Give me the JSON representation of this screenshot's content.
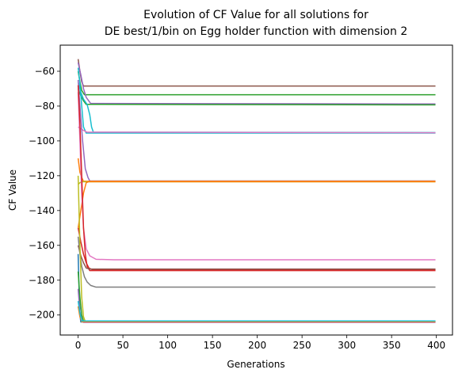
{
  "chart_data": {
    "type": "line",
    "title_lines": [
      "Evolution of CF Value for all solutions for",
      "DE best/1/bin on Egg holder function with dimension 2"
    ],
    "xlabel": "Generations",
    "ylabel": "CF Value",
    "xlim": [
      -20,
      418
    ],
    "ylim": [
      -211.5,
      -45
    ],
    "x_ticks": [
      0,
      50,
      100,
      150,
      200,
      250,
      300,
      350,
      400
    ],
    "y_ticks": [
      -60,
      -80,
      -100,
      -120,
      -140,
      -160,
      -180,
      -200
    ],
    "x_tick_labels": [
      "0",
      "50",
      "100",
      "150",
      "200",
      "250",
      "300",
      "350",
      "400"
    ],
    "y_tick_labels": [
      "−60",
      "−80",
      "−100",
      "−120",
      "−140",
      "−160",
      "−180",
      "−200"
    ],
    "grid": false,
    "legend": "none",
    "x_max": 399,
    "series": [
      {
        "color": "#8c564b",
        "points": [
          [
            0,
            -53
          ],
          [
            2,
            -60
          ],
          [
            4,
            -66
          ],
          [
            6,
            -68.5
          ],
          [
            399,
            -68.5
          ]
        ]
      },
      {
        "color": "#2ca02c",
        "points": [
          [
            0,
            -60
          ],
          [
            2,
            -66
          ],
          [
            4,
            -71
          ],
          [
            7,
            -73.5
          ],
          [
            399,
            -73.5
          ]
        ]
      },
      {
        "color": "#9467bd",
        "points": [
          [
            0,
            -55
          ],
          [
            3,
            -62
          ],
          [
            6,
            -70
          ],
          [
            9,
            -75
          ],
          [
            14,
            -78.5
          ],
          [
            399,
            -78.8
          ]
        ]
      },
      {
        "color": "#2ca02c",
        "points": [
          [
            0,
            -70
          ],
          [
            3,
            -74
          ],
          [
            6,
            -77
          ],
          [
            9,
            -79
          ],
          [
            399,
            -79.3
          ]
        ]
      },
      {
        "color": "#17becf",
        "points": [
          [
            0,
            -66
          ],
          [
            3,
            -72
          ],
          [
            6,
            -76
          ],
          [
            10,
            -79
          ],
          [
            13,
            -85
          ],
          [
            15,
            -92
          ],
          [
            17,
            -95
          ],
          [
            399,
            -95.2
          ]
        ]
      },
      {
        "color": "#17becf",
        "points": [
          [
            0,
            -58
          ],
          [
            2,
            -67
          ],
          [
            4,
            -80
          ],
          [
            6,
            -92
          ],
          [
            9,
            -95.5
          ],
          [
            399,
            -95.5
          ]
        ]
      },
      {
        "color": "#e377c2",
        "points": [
          [
            0,
            -92
          ],
          [
            3,
            -93
          ],
          [
            6,
            -94
          ],
          [
            10,
            -95
          ],
          [
            399,
            -95.3
          ]
        ]
      },
      {
        "color": "#9467bd",
        "points": [
          [
            0,
            -65
          ],
          [
            2,
            -80
          ],
          [
            5,
            -100
          ],
          [
            8,
            -116
          ],
          [
            11,
            -121
          ],
          [
            13,
            -123
          ],
          [
            399,
            -123
          ]
        ]
      },
      {
        "color": "#ff7f0e",
        "points": [
          [
            0,
            -110
          ],
          [
            2,
            -118
          ],
          [
            4,
            -121
          ],
          [
            6,
            -123.2
          ],
          [
            399,
            -123.2
          ]
        ]
      },
      {
        "color": "#bcbd22",
        "points": [
          [
            0,
            -125
          ],
          [
            2,
            -124
          ],
          [
            4,
            -123.5
          ],
          [
            399,
            -123.5
          ]
        ]
      },
      {
        "color": "#ff7f0e",
        "points": [
          [
            0,
            -150
          ],
          [
            3,
            -140
          ],
          [
            6,
            -130
          ],
          [
            9,
            -124
          ],
          [
            12,
            -123.4
          ],
          [
            399,
            -123.4
          ]
        ]
      },
      {
        "color": "#e377c2",
        "points": [
          [
            0,
            -72
          ],
          [
            2,
            -100
          ],
          [
            4,
            -130
          ],
          [
            6,
            -150
          ],
          [
            9,
            -162
          ],
          [
            13,
            -166
          ],
          [
            20,
            -168
          ],
          [
            40,
            -168.3
          ],
          [
            399,
            -168.3
          ]
        ]
      },
      {
        "color": "#d62728",
        "points": [
          [
            0,
            -150
          ],
          [
            3,
            -158
          ],
          [
            6,
            -165
          ],
          [
            9,
            -170
          ],
          [
            12,
            -173
          ],
          [
            16,
            -174
          ],
          [
            399,
            -174
          ]
        ]
      },
      {
        "color": "#d62728",
        "points": [
          [
            0,
            -68
          ],
          [
            2,
            -90
          ],
          [
            4,
            -120
          ],
          [
            6,
            -150
          ],
          [
            8,
            -165
          ],
          [
            10,
            -172
          ],
          [
            13,
            -174.5
          ],
          [
            399,
            -174.5
          ]
        ]
      },
      {
        "color": "#8c564b",
        "points": [
          [
            0,
            -160
          ],
          [
            3,
            -166
          ],
          [
            6,
            -170
          ],
          [
            9,
            -173
          ],
          [
            13,
            -173.6
          ],
          [
            399,
            -173.6
          ]
        ]
      },
      {
        "color": "#7f7f7f",
        "points": [
          [
            0,
            -155
          ],
          [
            2,
            -165
          ],
          [
            4,
            -172
          ],
          [
            7,
            -178
          ],
          [
            10,
            -181
          ],
          [
            14,
            -183
          ],
          [
            20,
            -184
          ],
          [
            399,
            -184
          ]
        ]
      },
      {
        "color": "#1f77b4",
        "points": [
          [
            0,
            -165
          ],
          [
            1,
            -185
          ],
          [
            2,
            -200
          ],
          [
            3,
            -204
          ],
          [
            399,
            -204
          ]
        ]
      },
      {
        "color": "#9467bd",
        "points": [
          [
            0,
            -185
          ],
          [
            2,
            -198
          ],
          [
            4,
            -203
          ],
          [
            6,
            -204.2
          ],
          [
            399,
            -204.2
          ]
        ]
      },
      {
        "color": "#bcbd22",
        "points": [
          [
            0,
            -120
          ],
          [
            2,
            -160
          ],
          [
            4,
            -190
          ],
          [
            6,
            -201
          ],
          [
            8,
            -203.8
          ],
          [
            399,
            -203.8
          ]
        ]
      },
      {
        "color": "#2ca02c",
        "points": [
          [
            0,
            -175
          ],
          [
            2,
            -190
          ],
          [
            4,
            -200
          ],
          [
            6,
            -203.6
          ],
          [
            399,
            -203.6
          ]
        ]
      },
      {
        "color": "#ff7f0e",
        "points": [
          [
            0,
            -195
          ],
          [
            2,
            -201
          ],
          [
            4,
            -203.9
          ],
          [
            399,
            -203.9
          ]
        ]
      },
      {
        "color": "#17becf",
        "points": [
          [
            0,
            -192
          ],
          [
            2,
            -199
          ],
          [
            4,
            -203.4
          ],
          [
            399,
            -203.4
          ]
        ]
      }
    ]
  }
}
